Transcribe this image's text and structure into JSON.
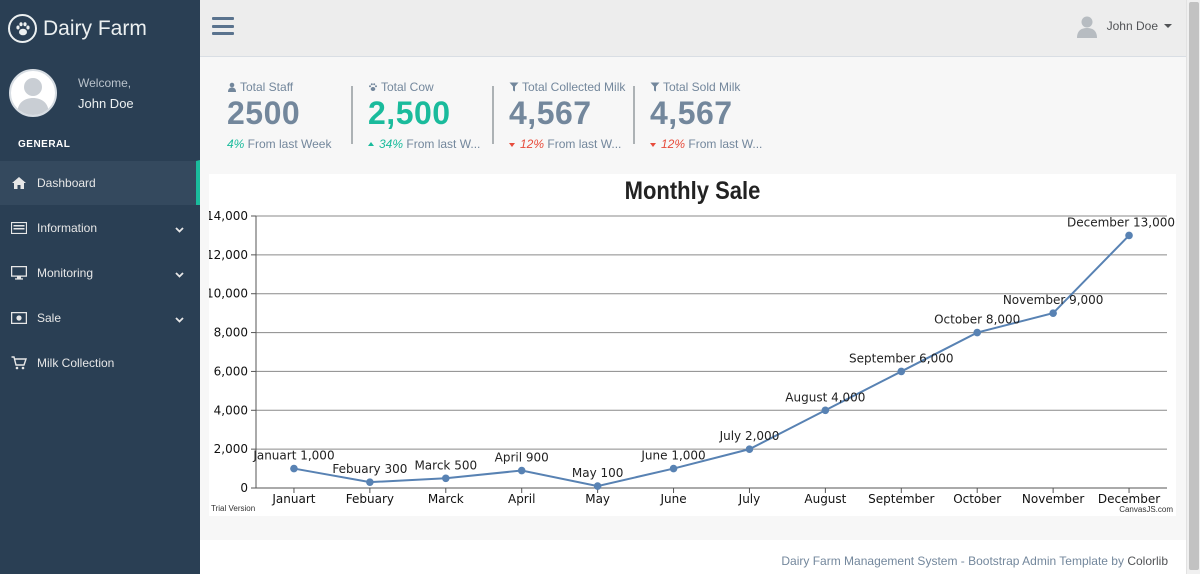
{
  "brand": {
    "title": "Dairy Farm"
  },
  "profile": {
    "welcome": "Welcome,",
    "name": "John Doe"
  },
  "sidebar": {
    "section_title": "GENERAL",
    "items": [
      {
        "label": "Dashboard",
        "icon": "home-icon",
        "active": true,
        "has_submenu": false
      },
      {
        "label": "Information",
        "icon": "list-icon",
        "active": false,
        "has_submenu": true
      },
      {
        "label": "Monitoring",
        "icon": "desktop-icon",
        "active": false,
        "has_submenu": true
      },
      {
        "label": "Sale",
        "icon": "money-icon",
        "active": false,
        "has_submenu": true
      },
      {
        "label": "Milk Collection",
        "icon": "cart-icon",
        "active": false,
        "has_submenu": false
      }
    ]
  },
  "topnav": {
    "user_name": "John Doe"
  },
  "stats": [
    {
      "label": "Total Staff",
      "icon": "user-icon",
      "count": "2500",
      "pct": "4%",
      "foot": " From last Week",
      "trend": "none",
      "highlight": false
    },
    {
      "label": "Total Cow",
      "icon": "paw-icon",
      "count": "2,500",
      "pct": "34%",
      "foot": " From last W...",
      "trend": "up",
      "highlight": true
    },
    {
      "label": "Total Collected Milk",
      "icon": "filter-icon",
      "count": "4,567",
      "pct": "12%",
      "foot": " From last W...",
      "trend": "down",
      "highlight": false
    },
    {
      "label": "Total Sold Milk",
      "icon": "filter-icon",
      "count": "4,567",
      "pct": "12%",
      "foot": " From last W...",
      "trend": "down",
      "highlight": false
    }
  ],
  "chart_data": {
    "type": "line",
    "title": "Monthly Sale",
    "categories": [
      "Januart",
      "Febuary",
      "Marck",
      "April",
      "May",
      "June",
      "July",
      "August",
      "September",
      "October",
      "November",
      "December"
    ],
    "values": [
      1000,
      300,
      500,
      900,
      100,
      1000,
      2000,
      4000,
      6000,
      8000,
      9000,
      13000
    ],
    "data_labels": [
      "Januart 1,000",
      "Febuary 300",
      "Marck 500",
      "April 900",
      "May 100",
      "June 1,000",
      "July 2,000",
      "August 4,000",
      "September 6,000",
      "October 8,000",
      "November 9,000",
      "December 13,000"
    ],
    "y_ticks": [
      "0",
      "2,000",
      "4,000",
      "6,000",
      "8,000",
      "10,000",
      "12,000",
      "14,000"
    ],
    "ylim": [
      0,
      14000
    ],
    "xlabel": "",
    "ylabel": "",
    "grid": true,
    "line_color": "#5882b3",
    "trial_text": "Trial Version",
    "credit_text": "CanvasJS.com"
  },
  "footer": {
    "text": "Dairy Farm Management System - Bootstrap Admin Template by ",
    "author": "Colorlib"
  },
  "colors": {
    "sidebar": "#2a3f54",
    "accent": "#1abb9c",
    "danger": "#e74c3c",
    "text_muted": "#73879c"
  }
}
